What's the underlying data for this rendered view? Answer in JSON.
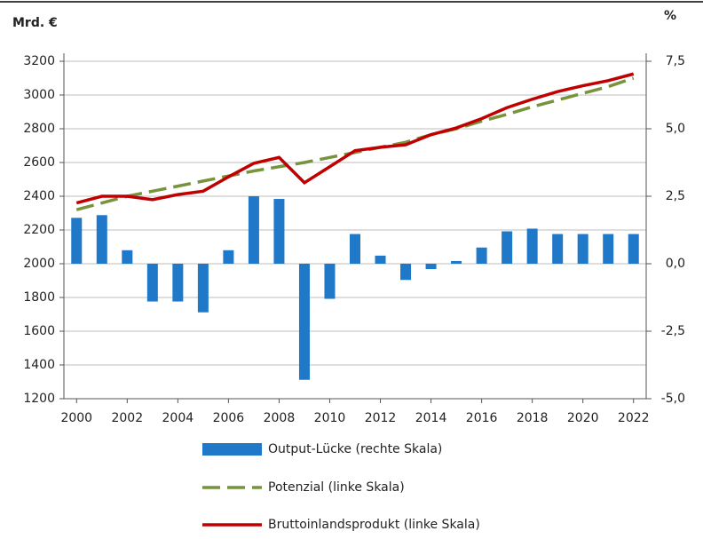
{
  "chart_data": {
    "type": "combo",
    "y_label": "Mrd. €",
    "y2_label": "%",
    "x": [
      2000,
      2001,
      2002,
      2003,
      2004,
      2005,
      2006,
      2007,
      2008,
      2009,
      2010,
      2011,
      2012,
      2013,
      2014,
      2015,
      2016,
      2017,
      2018,
      2019,
      2020,
      2021,
      2022
    ],
    "xlim": [
      1999.5,
      2022.5
    ],
    "xticks": [
      2000,
      2002,
      2004,
      2006,
      2008,
      2010,
      2012,
      2014,
      2016,
      2018,
      2020,
      2022
    ],
    "ylim": [
      1200,
      3200
    ],
    "yticks": [
      1200,
      1400,
      1600,
      1800,
      2000,
      2200,
      2400,
      2600,
      2800,
      3000,
      3200
    ],
    "y2lim": [
      -5,
      7.5
    ],
    "y2ticks": [
      {
        "value": -5,
        "label": "-5,0"
      },
      {
        "value": -2.5,
        "label": "-2,5"
      },
      {
        "value": 0,
        "label": "0,0"
      },
      {
        "value": 2.5,
        "label": "2,5"
      },
      {
        "value": 5,
        "label": "5,0"
      },
      {
        "value": 7.5,
        "label": "7,5"
      }
    ],
    "grid": true,
    "series": [
      {
        "name": "Output-Lücke (rechte Skala)",
        "type": "bar",
        "axis": "y2",
        "color": "#1f78c8",
        "values": [
          1.7,
          1.8,
          0.5,
          -1.4,
          -1.4,
          -1.8,
          0.5,
          2.5,
          2.4,
          -4.3,
          -1.3,
          1.1,
          0.3,
          -0.6,
          -0.2,
          0.1,
          0.6,
          1.2,
          1.3,
          1.1,
          1.1,
          1.1,
          1.1
        ]
      },
      {
        "name": "Potenzial (linke Skala)",
        "type": "line",
        "dashed": true,
        "color": "#77933c",
        "values": [
          2320,
          2360,
          2400,
          2430,
          2460,
          2490,
          2520,
          2550,
          2575,
          2600,
          2630,
          2660,
          2690,
          2720,
          2765,
          2800,
          2845,
          2885,
          2930,
          2970,
          3010,
          3050,
          3100
        ]
      },
      {
        "name": "Bruttoinlandsprodukt (linke Skala)",
        "type": "line",
        "dashed": false,
        "color": "#c00000",
        "values": [
          2360,
          2400,
          2400,
          2380,
          2410,
          2430,
          2515,
          2595,
          2630,
          2480,
          2575,
          2670,
          2690,
          2705,
          2765,
          2805,
          2860,
          2925,
          2975,
          3020,
          3055,
          3085,
          3125
        ]
      }
    ]
  }
}
